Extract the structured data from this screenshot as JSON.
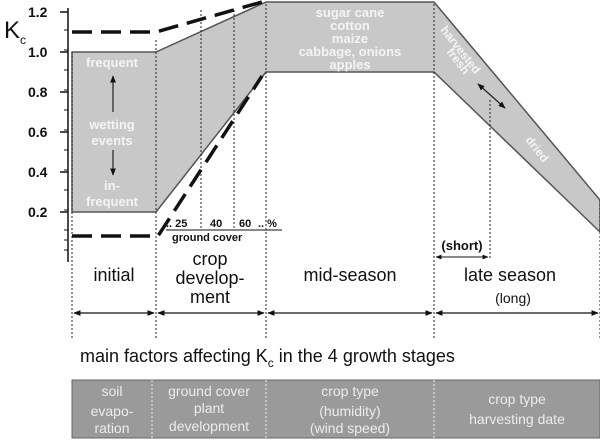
{
  "axis": {
    "symbol": "K",
    "symbol_sub": "c",
    "ticks": [
      "1.2",
      "1.0",
      "0.8",
      "0.6",
      "0.4",
      "0.2"
    ]
  },
  "initial_band": {
    "top_label": "frequent",
    "middle_label_1": "wetting",
    "middle_label_2": "events",
    "bottom_label_1": "in-",
    "bottom_label_2": "frequent"
  },
  "midseason_crops": [
    "sugar cane",
    "cotton",
    "maize",
    "cabbage, onions",
    "apples"
  ],
  "late_season_band": {
    "upper_label": "harvested",
    "upper_label_2": "fresh",
    "lower_label": "dried"
  },
  "ground_cover": {
    "ticks": [
      ".. 25",
      "40",
      "60",
      ".. %"
    ],
    "label": "ground cover"
  },
  "stages": {
    "initial": "initial",
    "development_1": "crop",
    "development_2": "develop-",
    "development_3": "ment",
    "mid": "mid-season",
    "late": "late season",
    "short": "(short)",
    "long": "(long)"
  },
  "caption": {
    "text": "main factors affecting K",
    "sub": "c",
    "suffix": " in the 4 growth stages"
  },
  "factor_boxes": [
    {
      "lines": [
        "soil",
        "evapo-",
        "ration"
      ]
    },
    {
      "lines": [
        "ground cover",
        "plant",
        "development"
      ]
    },
    {
      "lines": [
        "crop type",
        "(humidity)",
        "(wind speed)"
      ]
    },
    {
      "lines": [
        "crop type",
        "harvesting date"
      ]
    }
  ],
  "colors": {
    "band_fill": "#c8c8c8",
    "box_fill": "#9a9a9a",
    "line": "#111111"
  }
}
